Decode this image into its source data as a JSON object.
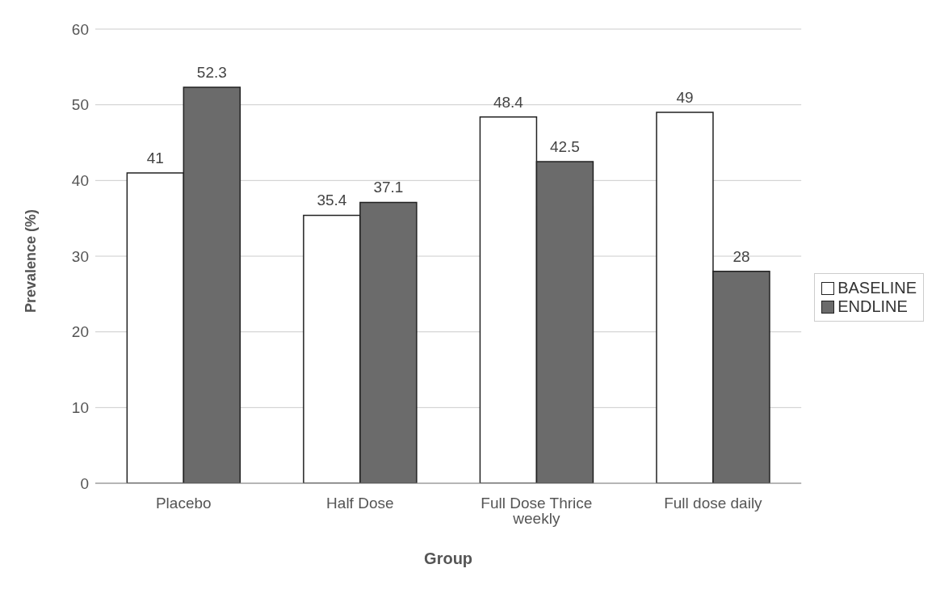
{
  "chart_data": {
    "type": "bar",
    "xlabel": "Group",
    "ylabel": "Prevalence (%)",
    "categories": [
      "Placebo",
      "Half Dose",
      "Full Dose Thrice weekly",
      "Full dose daily"
    ],
    "series": [
      {
        "name": "BASELINE",
        "color": "#ffffff",
        "values": [
          41,
          35.4,
          48.4,
          49
        ]
      },
      {
        "name": "ENDLINE",
        "color": "#6b6b6b",
        "values": [
          52.3,
          37.1,
          42.5,
          28
        ]
      }
    ],
    "ylim": [
      0,
      60
    ],
    "yticks": [
      0,
      10,
      20,
      30,
      40,
      50,
      60
    ],
    "grid": "y",
    "legend": "right",
    "data_labels": true
  }
}
